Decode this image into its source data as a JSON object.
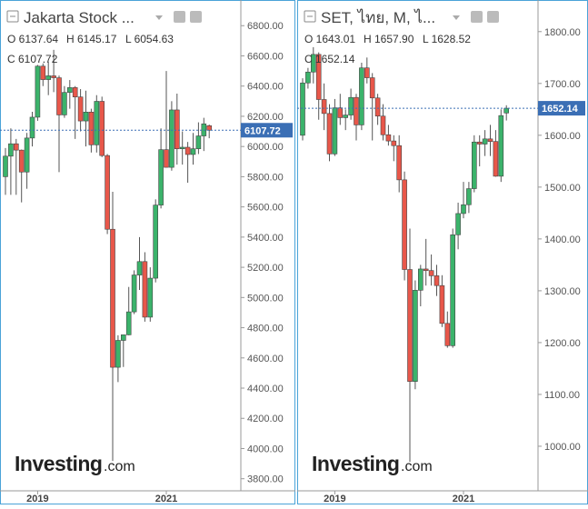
{
  "chart_data": [
    {
      "type": "candlestick",
      "title": "Jakarta Stock ...",
      "legend": [
        "O 6137.64",
        "H 6145.17",
        "L 6054.63",
        "C 6107.72"
      ],
      "series": {
        "up_color": "#3bb36b",
        "down_color": "#e8574a",
        "open": [
          5800,
          5936,
          6018,
          5976,
          5831,
          6056,
          6194,
          6532,
          6443,
          6468,
          6455,
          6209,
          6358,
          6390,
          6328,
          6169,
          6228,
          6011,
          6299,
          5940,
          5452,
          4538,
          4716,
          4753,
          4905,
          5149,
          5238,
          4870,
          5128,
          5612,
          5979,
          5862,
          6242,
          5985,
          5995,
          5947,
          5985,
          6070,
          6137.64
        ],
        "high": [
          5990,
          6120,
          6050,
          5980,
          6090,
          6230,
          6540,
          6550,
          6560,
          6640,
          6470,
          6400,
          6440,
          6400,
          6380,
          6370,
          6250,
          6340,
          6330,
          5950,
          5700,
          4750,
          4750,
          5070,
          5180,
          5400,
          5300,
          5200,
          5650,
          6120,
          6500,
          6300,
          6350,
          6100,
          6030,
          6090,
          6160,
          6190,
          6145.17
        ],
        "low": [
          5680,
          5680,
          5680,
          5630,
          5720,
          6000,
          6170,
          6400,
          6340,
          6360,
          5830,
          6190,
          6250,
          6050,
          6100,
          6000,
          5960,
          5960,
          5930,
          5420,
          3918,
          4440,
          4540,
          4750,
          4890,
          5050,
          4840,
          4840,
          5100,
          5590,
          5860,
          5840,
          5880,
          5880,
          5760,
          5880,
          5950,
          5970,
          6054.63
        ],
        "close": [
          5936,
          6018,
          5976,
          5831,
          6056,
          6194,
          6532,
          6443,
          6468,
          6455,
          6209,
          6358,
          6390,
          6328,
          6169,
          6228,
          6011,
          6299,
          5940,
          5452,
          4538,
          4716,
          4753,
          4905,
          5149,
          5238,
          4870,
          5128,
          5612,
          5979,
          5862,
          6242,
          5985,
          5995,
          5947,
          5985,
          6070,
          6150,
          6107.72
        ]
      },
      "ylim": [
        3720,
        6970
      ],
      "yticks": [
        {
          "value": 3800,
          "label": "3800.00"
        },
        {
          "value": 4000,
          "label": "4000.00"
        },
        {
          "value": 4200,
          "label": "4200.00"
        },
        {
          "value": 4400,
          "label": "4400.00"
        },
        {
          "value": 4600,
          "label": "4600.00"
        },
        {
          "value": 4800,
          "label": "4800.00"
        },
        {
          "value": 5000,
          "label": "5000.00"
        },
        {
          "value": 5200,
          "label": "5200.00"
        },
        {
          "value": 5400,
          "label": "5400.00"
        },
        {
          "value": 5600,
          "label": "5600.00"
        },
        {
          "value": 5800,
          "label": "5800.00"
        },
        {
          "value": 6000,
          "label": "6000.00"
        },
        {
          "value": 6200,
          "label": "6200.00"
        },
        {
          "value": 6400,
          "label": "6400.00"
        },
        {
          "value": 6600,
          "label": "6600.00"
        },
        {
          "value": 6800,
          "label": "6800.00"
        }
      ],
      "xtick_labels": [
        "2019",
        "2021"
      ],
      "logo": [
        "Investing",
        ".com"
      ]
    },
    {
      "type": "candlestick",
      "title": "SET, ไทย, M, ไ...",
      "legend": [
        "O 1643.01",
        "H 1657.90",
        "L 1628.52",
        "C 1652.14"
      ],
      "series": {
        "up_color": "#3bb36b",
        "down_color": "#e8574a",
        "open": [
          1600,
          1701,
          1722,
          1756,
          1669,
          1642,
          1564,
          1653,
          1634,
          1639,
          1673,
          1620,
          1730,
          1711,
          1672,
          1637,
          1601,
          1589,
          1580,
          1514,
          1341,
          1125,
          1301,
          1342,
          1339,
          1329,
          1310,
          1237,
          1194,
          1408,
          1449,
          1466,
          1497,
          1587,
          1583,
          1593,
          1588,
          1521,
          1643.01
        ],
        "high": [
          1710,
          1730,
          1770,
          1760,
          1700,
          1660,
          1670,
          1680,
          1650,
          1690,
          1680,
          1740,
          1750,
          1720,
          1680,
          1660,
          1620,
          1600,
          1600,
          1530,
          1420,
          1320,
          1350,
          1400,
          1370,
          1350,
          1330,
          1260,
          1420,
          1470,
          1510,
          1510,
          1600,
          1600,
          1610,
          1620,
          1610,
          1650,
          1657.9
        ],
        "low": [
          1590,
          1690,
          1700,
          1630,
          1610,
          1550,
          1560,
          1620,
          1610,
          1630,
          1590,
          1610,
          1700,
          1590,
          1620,
          1590,
          1580,
          1550,
          1490,
          1320,
          970,
          1110,
          1270,
          1310,
          1310,
          1290,
          1230,
          1190,
          1190,
          1380,
          1440,
          1450,
          1490,
          1540,
          1560,
          1560,
          1520,
          1510,
          1628.52
        ],
        "close": [
          1701,
          1722,
          1756,
          1669,
          1642,
          1564,
          1653,
          1634,
          1639,
          1673,
          1620,
          1730,
          1711,
          1672,
          1637,
          1601,
          1589,
          1580,
          1514,
          1341,
          1125,
          1301,
          1342,
          1339,
          1329,
          1310,
          1237,
          1194,
          1408,
          1449,
          1466,
          1497,
          1587,
          1583,
          1593,
          1588,
          1521,
          1638,
          1652.14
        ]
      },
      "ylim": [
        914,
        1861
      ],
      "yticks": [
        {
          "value": 1000,
          "label": "1000.00"
        },
        {
          "value": 1100,
          "label": "1100.00"
        },
        {
          "value": 1200,
          "label": "1200.00"
        },
        {
          "value": 1300,
          "label": "1300.00"
        },
        {
          "value": 1400,
          "label": "1400.00"
        },
        {
          "value": 1500,
          "label": "1500.00"
        },
        {
          "value": 1600,
          "label": "1600.00"
        },
        {
          "value": 1700,
          "label": "1700.00"
        },
        {
          "value": 1800,
          "label": "1800.00"
        }
      ],
      "xtick_labels": [
        "2019",
        "2021"
      ],
      "logo": [
        "Investing",
        ".com"
      ]
    }
  ]
}
